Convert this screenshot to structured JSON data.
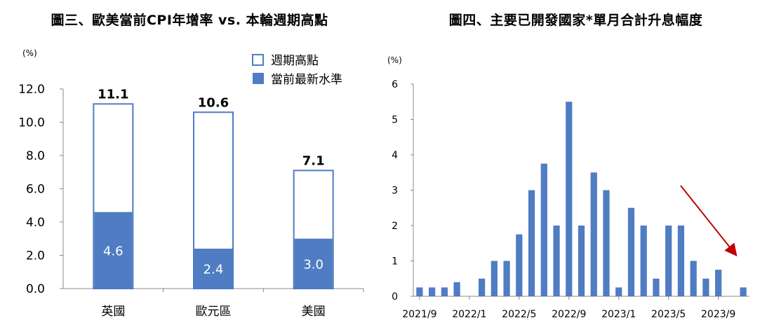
{
  "chart_data": [
    {
      "type": "bar",
      "title": "圖三、歐美當前CPI年增率 vs. 本輪週期高點",
      "unit_label": "(%)",
      "categories": [
        "英國",
        "歐元區",
        "美國"
      ],
      "series": [
        {
          "name": "週期高點",
          "values": [
            11.1,
            10.6,
            7.1
          ],
          "style": "outline"
        },
        {
          "name": "當前最新水準",
          "values": [
            4.6,
            2.4,
            3.0
          ],
          "style": "filled"
        }
      ],
      "y_ticks": [
        "0.0",
        "2.0",
        "4.0",
        "6.0",
        "8.0",
        "10.0",
        "12.0"
      ],
      "ylim": [
        0,
        12
      ],
      "legend_position": "top-right",
      "grid": false,
      "colors": {
        "fill": "#4f7cc3",
        "outline": "#4f7cc3"
      }
    },
    {
      "type": "bar",
      "title": "圖四、主要已開發國家*單月合計升息幅度",
      "unit_label": "(%)",
      "x": [
        "2021/9",
        "2021/10",
        "2021/11",
        "2021/12",
        "2022/1",
        "2022/2",
        "2022/3",
        "2022/4",
        "2022/5",
        "2022/6",
        "2022/7",
        "2022/8",
        "2022/9",
        "2022/10",
        "2022/11",
        "2022/12",
        "2023/1",
        "2023/2",
        "2023/3",
        "2023/4",
        "2023/5",
        "2023/6",
        "2023/7",
        "2023/8",
        "2023/9",
        "2023/10",
        "2023/11"
      ],
      "values": [
        0.25,
        0.25,
        0.25,
        0.4,
        0,
        0.5,
        1,
        1,
        1.75,
        3,
        3.75,
        2,
        5.5,
        2,
        3.5,
        3,
        0.25,
        2.5,
        2,
        0.5,
        2,
        2,
        1,
        0.5,
        0.75,
        0,
        0.25
      ],
      "x_tick_labels": [
        "2021/9",
        "2022/1",
        "2022/5",
        "2022/9",
        "2023/1",
        "2023/5",
        "2023/9"
      ],
      "y_ticks": [
        "0",
        "1",
        "2",
        "3",
        "4",
        "5",
        "6"
      ],
      "ylim": [
        0,
        6
      ],
      "grid": false,
      "annotation": "downward-trend-arrow",
      "colors": {
        "bar": "#4f7cc3",
        "arrow": "#c00000"
      }
    }
  ]
}
